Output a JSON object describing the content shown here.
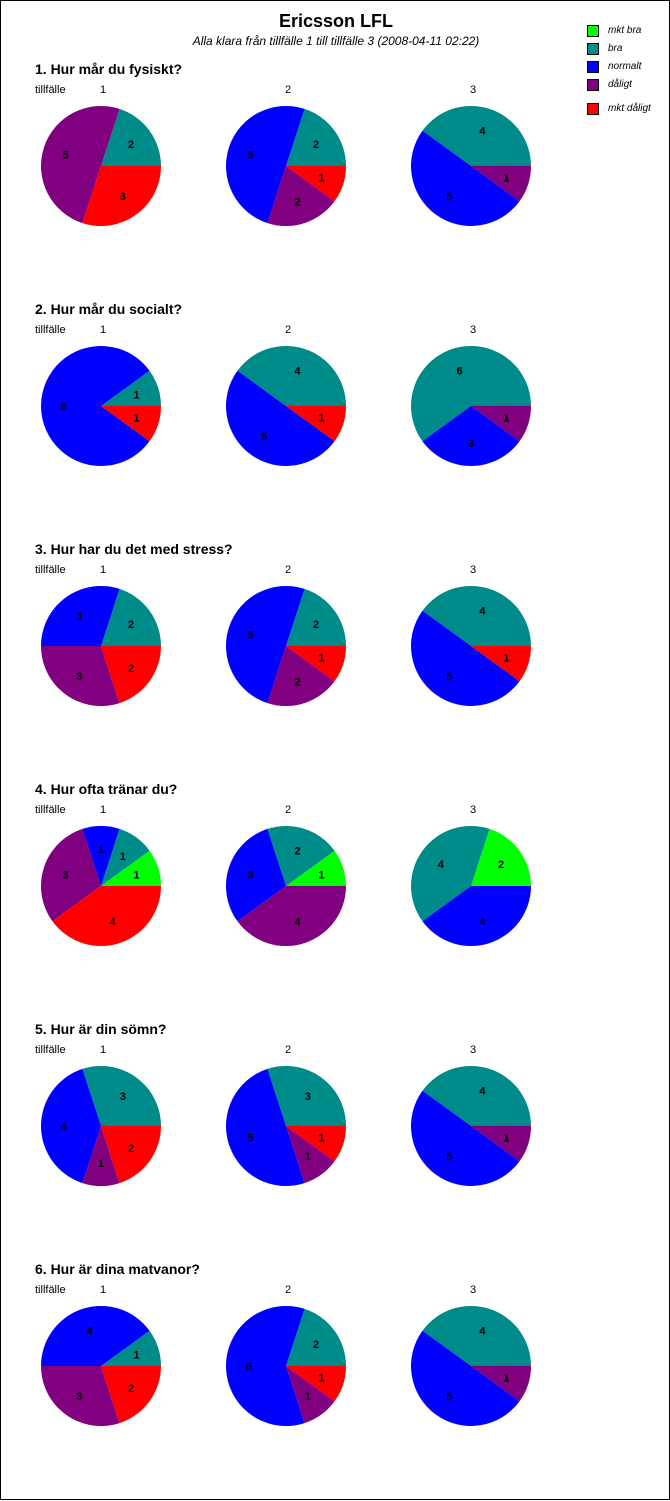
{
  "header": {
    "title": "Ericsson LFL",
    "subtitle": "Alla klara från tillfälle 1 till tillfälle 3  (2008-04-11  02:22)"
  },
  "legend": {
    "items": [
      {
        "label": "mkt bra",
        "color": "#00ff00"
      },
      {
        "label": "bra",
        "color": "#008b8b"
      },
      {
        "label": "normalt",
        "color": "#0000ff"
      },
      {
        "label": "dåligt",
        "color": "#800080"
      },
      {
        "label": "mkt dåligt",
        "color": "#ff0000"
      }
    ]
  },
  "session_prefix": "tillfälle",
  "chart_data": [
    {
      "type": "pie",
      "title": "1. Hur mår du fysiskt?",
      "series": [
        {
          "name": "1",
          "slices": [
            {
              "category": "bra",
              "value": 2
            },
            {
              "category": "dåligt",
              "value": 5
            },
            {
              "category": "mkt dåligt",
              "value": 3
            }
          ]
        },
        {
          "name": "2",
          "slices": [
            {
              "category": "bra",
              "value": 2
            },
            {
              "category": "normalt",
              "value": 5
            },
            {
              "category": "dåligt",
              "value": 2
            },
            {
              "category": "mkt dåligt",
              "value": 1
            }
          ]
        },
        {
          "name": "3",
          "slices": [
            {
              "category": "bra",
              "value": 4
            },
            {
              "category": "normalt",
              "value": 5
            },
            {
              "category": "dåligt",
              "value": 1
            }
          ]
        }
      ]
    },
    {
      "type": "pie",
      "title": "2. Hur mår du socialt?",
      "series": [
        {
          "name": "1",
          "slices": [
            {
              "category": "bra",
              "value": 1
            },
            {
              "category": "normalt",
              "value": 8
            },
            {
              "category": "mkt dåligt",
              "value": 1
            }
          ]
        },
        {
          "name": "2",
          "slices": [
            {
              "category": "bra",
              "value": 4
            },
            {
              "category": "normalt",
              "value": 5
            },
            {
              "category": "mkt dåligt",
              "value": 1
            }
          ]
        },
        {
          "name": "3",
          "slices": [
            {
              "category": "bra",
              "value": 6
            },
            {
              "category": "normalt",
              "value": 3
            },
            {
              "category": "dåligt",
              "value": 1
            }
          ]
        }
      ]
    },
    {
      "type": "pie",
      "title": "3. Hur har du det med stress?",
      "series": [
        {
          "name": "1",
          "slices": [
            {
              "category": "bra",
              "value": 2
            },
            {
              "category": "normalt",
              "value": 3
            },
            {
              "category": "dåligt",
              "value": 3
            },
            {
              "category": "mkt dåligt",
              "value": 2
            }
          ]
        },
        {
          "name": "2",
          "slices": [
            {
              "category": "bra",
              "value": 2
            },
            {
              "category": "normalt",
              "value": 5
            },
            {
              "category": "dåligt",
              "value": 2
            },
            {
              "category": "mkt dåligt",
              "value": 1
            }
          ]
        },
        {
          "name": "3",
          "slices": [
            {
              "category": "bra",
              "value": 4
            },
            {
              "category": "normalt",
              "value": 5
            },
            {
              "category": "mkt dåligt",
              "value": 1
            }
          ]
        }
      ]
    },
    {
      "type": "pie",
      "title": "4. Hur ofta tränar du?",
      "series": [
        {
          "name": "1",
          "slices": [
            {
              "category": "mkt bra",
              "value": 1
            },
            {
              "category": "bra",
              "value": 1
            },
            {
              "category": "normalt",
              "value": 1
            },
            {
              "category": "dåligt",
              "value": 3
            },
            {
              "category": "mkt dåligt",
              "value": 4
            }
          ]
        },
        {
          "name": "2",
          "slices": [
            {
              "category": "mkt bra",
              "value": 1
            },
            {
              "category": "bra",
              "value": 2
            },
            {
              "category": "normalt",
              "value": 3
            },
            {
              "category": "dåligt",
              "value": 4
            }
          ]
        },
        {
          "name": "3",
          "slices": [
            {
              "category": "mkt bra",
              "value": 2
            },
            {
              "category": "bra",
              "value": 4
            },
            {
              "category": "normalt",
              "value": 4
            }
          ]
        }
      ]
    },
    {
      "type": "pie",
      "title": "5. Hur är din sömn?",
      "series": [
        {
          "name": "1",
          "slices": [
            {
              "category": "bra",
              "value": 3
            },
            {
              "category": "normalt",
              "value": 4
            },
            {
              "category": "dåligt",
              "value": 1
            },
            {
              "category": "mkt dåligt",
              "value": 2
            }
          ]
        },
        {
          "name": "2",
          "slices": [
            {
              "category": "bra",
              "value": 3
            },
            {
              "category": "normalt",
              "value": 5
            },
            {
              "category": "dåligt",
              "value": 1
            },
            {
              "category": "mkt dåligt",
              "value": 1
            }
          ]
        },
        {
          "name": "3",
          "slices": [
            {
              "category": "bra",
              "value": 4
            },
            {
              "category": "normalt",
              "value": 5
            },
            {
              "category": "dåligt",
              "value": 1
            }
          ]
        }
      ]
    },
    {
      "type": "pie",
      "title": "6. Hur är dina matvanor?",
      "series": [
        {
          "name": "1",
          "slices": [
            {
              "category": "bra",
              "value": 1
            },
            {
              "category": "normalt",
              "value": 4
            },
            {
              "category": "dåligt",
              "value": 3
            },
            {
              "category": "mkt dåligt",
              "value": 2
            }
          ]
        },
        {
          "name": "2",
          "slices": [
            {
              "category": "bra",
              "value": 2
            },
            {
              "category": "normalt",
              "value": 6
            },
            {
              "category": "dåligt",
              "value": 1
            },
            {
              "category": "mkt dåligt",
              "value": 1
            }
          ]
        },
        {
          "name": "3",
          "slices": [
            {
              "category": "bra",
              "value": 4
            },
            {
              "category": "normalt",
              "value": 5
            },
            {
              "category": "dåligt",
              "value": 1
            }
          ]
        }
      ]
    }
  ]
}
